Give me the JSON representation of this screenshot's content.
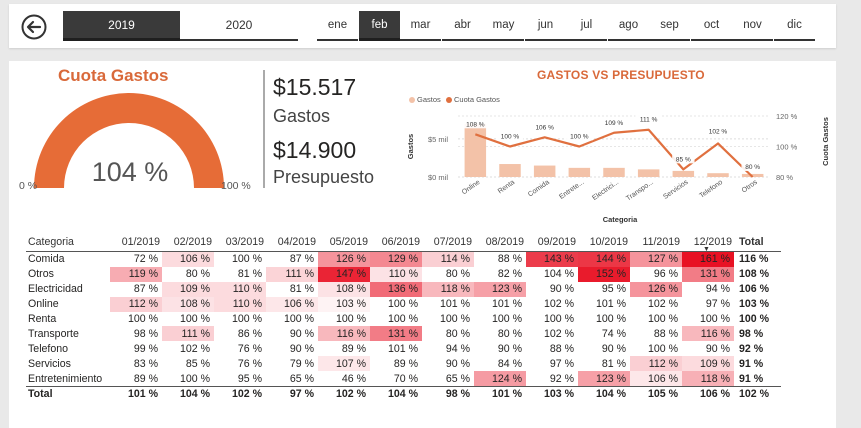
{
  "header": {
    "years": [
      "2019",
      "2020"
    ],
    "selected_year": "2019",
    "months": [
      "ene",
      "feb",
      "mar",
      "abr",
      "may",
      "jun",
      "jul",
      "ago",
      "sep",
      "oct",
      "nov",
      "dic"
    ],
    "selected_month": "feb",
    "back_icon": "back-arrow-icon"
  },
  "gauge": {
    "title": "Cuota Gastos",
    "value_label": "104 %",
    "value": 1.04,
    "min_label": "0 %",
    "max_label": "100 %",
    "color": "#E66C37"
  },
  "cards": {
    "gastos_value": "$15.517",
    "gastos_label": "Gastos",
    "presupuesto_value": "$14.900",
    "presupuesto_label": "Presupuesto"
  },
  "colors": {
    "accent": "#D9693A",
    "bar": "#F3C2A8",
    "line": "#E0703F",
    "heat_max": "#E81123"
  },
  "chart_data": {
    "type": "bar",
    "title": "GASTOS VS PRESUPUESTO",
    "categories": [
      "Online",
      "Renta",
      "Comida",
      "Entrete...",
      "Electrici...",
      "Transpo...",
      "Servicios",
      "Telefono",
      "Otros"
    ],
    "xlabel": "Categoria",
    "ylabel": "Gastos",
    "y2label": "Cuota Gastos",
    "y_ticks": [
      "$0 mil",
      "$5 mil"
    ],
    "y2_ticks": [
      "80 %",
      "100 %",
      "120 %"
    ],
    "ylim": [
      0,
      8
    ],
    "y2lim": [
      80,
      120
    ],
    "legend_position": "top-left",
    "series": [
      {
        "name": "Gastos",
        "type": "bar",
        "values": [
          7.0,
          1.7,
          1.5,
          1.2,
          1.2,
          1.0,
          0.8,
          0.5,
          0.4
        ]
      },
      {
        "name": "Cuota Gastos",
        "type": "line",
        "values": [
          108,
          100,
          106,
          100,
          109,
          111,
          85,
          102,
          80
        ]
      }
    ],
    "data_labels": [
      "108 %",
      "100 %",
      "106 %",
      "100 %",
      "109 %",
      "111 %",
      "85 %",
      "102 %",
      "80 %"
    ]
  },
  "table": {
    "columns": [
      "Categoria",
      "01/2019",
      "02/2019",
      "03/2019",
      "04/2019",
      "05/2019",
      "06/2019",
      "07/2019",
      "08/2019",
      "09/2019",
      "10/2019",
      "11/2019",
      "12/2019",
      "Total"
    ],
    "rows": [
      {
        "label": "Comida",
        "cells": [
          "72 %",
          "106 %",
          "100 %",
          "87 %",
          "126 %",
          "129 %",
          "114 %",
          "88 %",
          "143 %",
          "144 %",
          "127 %",
          "161 %"
        ],
        "total": "116 %",
        "heat": [
          0,
          0.15,
          0,
          0,
          0.45,
          0.5,
          0.2,
          0,
          0.82,
          0.84,
          0.45,
          1.0
        ]
      },
      {
        "label": "Otros",
        "cells": [
          "119 %",
          "80 %",
          "81 %",
          "111 %",
          "147 %",
          "110 %",
          "80 %",
          "82 %",
          "104 %",
          "152 %",
          "96 %",
          "131 %"
        ],
        "total": "108 %",
        "heat": [
          0.35,
          0,
          0,
          0.18,
          0.92,
          0.12,
          0,
          0,
          0,
          0.96,
          0,
          0.55
        ]
      },
      {
        "label": "Electricidad",
        "cells": [
          "87 %",
          "109 %",
          "110 %",
          "81 %",
          "108 %",
          "136 %",
          "118 %",
          "123 %",
          "90 %",
          "95 %",
          "126 %",
          "94 %"
        ],
        "total": "106 %",
        "heat": [
          0,
          0.15,
          0.15,
          0,
          0.12,
          0.62,
          0.3,
          0.4,
          0,
          0,
          0.45,
          0
        ]
      },
      {
        "label": "Online",
        "cells": [
          "112 %",
          "108 %",
          "110 %",
          "106 %",
          "103 %",
          "100 %",
          "101 %",
          "101 %",
          "102 %",
          "101 %",
          "102 %",
          "97 %"
        ],
        "total": "103 %",
        "heat": [
          0.2,
          0.12,
          0.15,
          0.1,
          0.05,
          0,
          0,
          0,
          0,
          0,
          0,
          0
        ]
      },
      {
        "label": "Renta",
        "cells": [
          "100 %",
          "100 %",
          "100 %",
          "100 %",
          "100 %",
          "100 %",
          "100 %",
          "100 %",
          "100 %",
          "100 %",
          "100 %",
          "100 %"
        ],
        "total": "100 %",
        "heat": [
          0,
          0,
          0,
          0,
          0,
          0,
          0,
          0,
          0,
          0,
          0,
          0
        ]
      },
      {
        "label": "Transporte",
        "cells": [
          "98 %",
          "111 %",
          "86 %",
          "90 %",
          "116 %",
          "131 %",
          "80 %",
          "80 %",
          "102 %",
          "74 %",
          "88 %",
          "116 %"
        ],
        "total": "98 %",
        "heat": [
          0,
          0.2,
          0,
          0,
          0.3,
          0.55,
          0,
          0,
          0,
          0,
          0,
          0.3
        ]
      },
      {
        "label": "Telefono",
        "cells": [
          "99 %",
          "102 %",
          "76 %",
          "90 %",
          "89 %",
          "101 %",
          "94 %",
          "90 %",
          "88 %",
          "90 %",
          "100 %",
          "90 %"
        ],
        "total": "92 %",
        "heat": [
          0,
          0,
          0,
          0,
          0,
          0,
          0,
          0,
          0,
          0,
          0,
          0
        ]
      },
      {
        "label": "Servicios",
        "cells": [
          "83 %",
          "85 %",
          "76 %",
          "79 %",
          "107 %",
          "89 %",
          "90 %",
          "84 %",
          "97 %",
          "81 %",
          "112 %",
          "109 %"
        ],
        "total": "91 %",
        "heat": [
          0,
          0,
          0,
          0,
          0.1,
          0,
          0,
          0,
          0,
          0,
          0.2,
          0.15
        ]
      },
      {
        "label": "Entretenimiento",
        "cells": [
          "89 %",
          "100 %",
          "95 %",
          "65 %",
          "46 %",
          "70 %",
          "65 %",
          "124 %",
          "92 %",
          "123 %",
          "106 %",
          "118 %"
        ],
        "total": "91 %",
        "heat": [
          0,
          0,
          0,
          0,
          0,
          0,
          0,
          0.42,
          0,
          0.4,
          0.1,
          0.33
        ]
      }
    ],
    "total_row": {
      "label": "Total",
      "cells": [
        "101 %",
        "104 %",
        "102 %",
        "97 %",
        "102 %",
        "104 %",
        "98 %",
        "101 %",
        "103 %",
        "104 %",
        "105 %",
        "106 %"
      ],
      "total": "102 %"
    }
  }
}
